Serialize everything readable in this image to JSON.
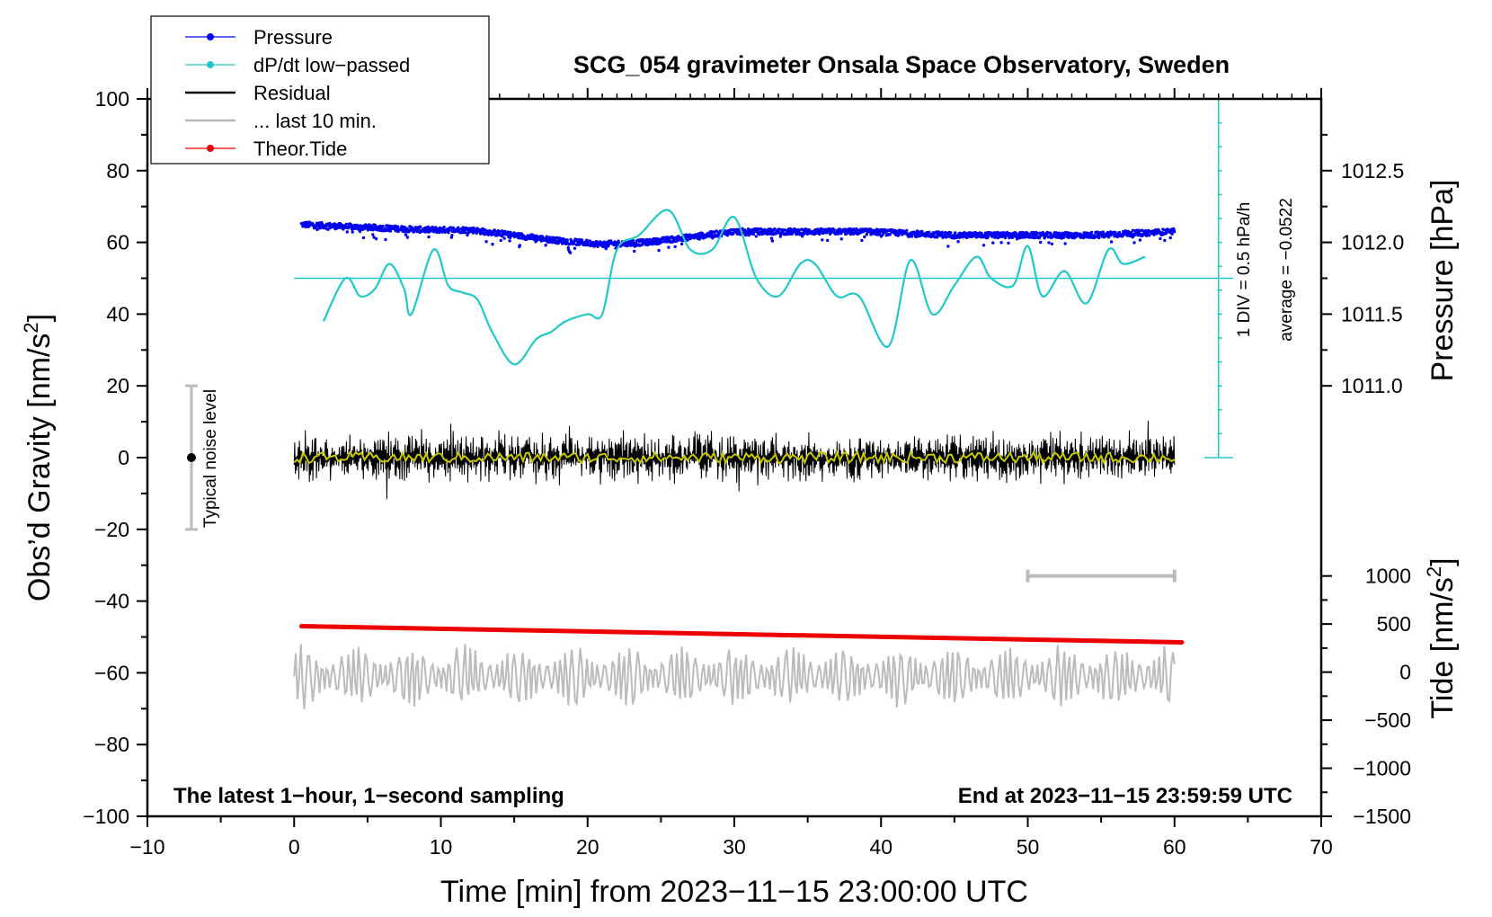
{
  "chart_data": {
    "type": "line",
    "title": "SCG_054 gravimeter Onsala Space Observatory, Sweden",
    "xlabel": "Time [min] from 2023−11−15 23:00:00 UTC",
    "ylabel_left": "Obs’d Gravity [nm/s",
    "ylabel_left_sup": "2",
    "ylabel_left_end": "]",
    "ylabel_pressure": "Pressure [hPa]",
    "ylabel_tide": "Tide [nm/s",
    "ylabel_tide_sup": "2",
    "ylabel_tide_end": "]",
    "xlim": [
      -10,
      70
    ],
    "ylim": [
      -100,
      100
    ],
    "x_ticks": [
      {
        "v": -10,
        "label": "−10"
      },
      {
        "v": 0,
        "label": "0"
      },
      {
        "v": 10,
        "label": "10"
      },
      {
        "v": 20,
        "label": "20"
      },
      {
        "v": 30,
        "label": "30"
      },
      {
        "v": 40,
        "label": "40"
      },
      {
        "v": 50,
        "label": "50"
      },
      {
        "v": 60,
        "label": "60"
      },
      {
        "v": 70,
        "label": "70"
      }
    ],
    "y_ticks": [
      {
        "v": 100,
        "label": "100"
      },
      {
        "v": 80,
        "label": "80"
      },
      {
        "v": 60,
        "label": "60"
      },
      {
        "v": 40,
        "label": "40"
      },
      {
        "v": 20,
        "label": "20"
      },
      {
        "v": 0,
        "label": "0"
      },
      {
        "v": -20,
        "label": "−20"
      },
      {
        "v": -40,
        "label": "−40"
      },
      {
        "v": -60,
        "label": "−60"
      },
      {
        "v": -80,
        "label": "−80"
      },
      {
        "v": -100,
        "label": "−100"
      }
    ],
    "pressure_axis": {
      "range_hpa": [
        1011.0,
        1012.5
      ],
      "maps_to_left": [
        20,
        80
      ],
      "ticks": [
        {
          "v": 1012.5,
          "label": "1012.5"
        },
        {
          "v": 1012.0,
          "label": "1012.0"
        },
        {
          "v": 1011.5,
          "label": "1011.5"
        },
        {
          "v": 1011.0,
          "label": "1011.0"
        }
      ]
    },
    "tide_axis": {
      "range": [
        -1500,
        1000
      ],
      "maps_to_left": [
        -100,
        -33
      ],
      "ticks": [
        {
          "v": 1000,
          "label": "1000"
        },
        {
          "v": 500,
          "label": "500"
        },
        {
          "v": 0,
          "label": "0"
        },
        {
          "v": -500,
          "label": "−500"
        },
        {
          "v": -1000,
          "label": "−1000"
        },
        {
          "v": -1500,
          "label": "−1500"
        }
      ]
    },
    "series": [
      {
        "name": "Pressure",
        "color": "#0000ee",
        "style": "dots",
        "x": [
          0.5,
          3,
          6,
          9,
          12,
          15,
          18,
          21,
          24,
          27,
          30,
          33,
          36,
          39,
          42,
          45,
          48,
          51,
          54,
          57,
          60
        ],
        "y": [
          65,
          64.5,
          64,
          63.5,
          63.5,
          62,
          60.5,
          59.5,
          60,
          61.5,
          63,
          63,
          63,
          63,
          62.5,
          62,
          62,
          62,
          62,
          62.5,
          63
        ]
      },
      {
        "name": "dP/dt low−passed",
        "color": "#20c8c8",
        "style": "line",
        "x": [
          2,
          3.5,
          4.5,
          5.5,
          6.5,
          7.5,
          8,
          9.5,
          10.5,
          11.5,
          12.5,
          13.5,
          15,
          16.5,
          17.5,
          18.5,
          20,
          21,
          22,
          23.5,
          25.5,
          27,
          28.5,
          30,
          31.5,
          33,
          34.5,
          35.5,
          37,
          38.5,
          40.5,
          42,
          43.5,
          45,
          46.5,
          47.5,
          49,
          50,
          51,
          52.5,
          54,
          55.5,
          56.5,
          58
        ],
        "y": [
          38,
          50,
          45,
          47,
          54,
          47,
          40,
          58,
          48,
          46,
          44,
          35,
          26,
          33,
          35,
          38,
          40,
          40,
          58,
          62,
          69,
          58,
          58,
          67,
          50,
          45,
          54,
          54,
          45,
          45,
          31,
          55,
          40,
          48,
          56,
          50,
          48,
          59,
          45,
          52,
          43,
          58,
          54,
          56
        ]
      },
      {
        "name": "Residual",
        "color": "#000000",
        "style": "noisy",
        "center": 0,
        "amplitude": 8,
        "x_range": [
          0,
          60
        ]
      },
      {
        "name": "... last 10 min.",
        "color": "#bbbbbb",
        "style": "bar",
        "x_range": [
          50,
          60
        ],
        "y": -33
      },
      {
        "name": "Theor.Tide",
        "color": "#ee0000",
        "style": "dots",
        "x": [
          0.5,
          60.5
        ],
        "y": [
          -47,
          -51.5
        ]
      }
    ],
    "low_passed_residual": {
      "color": "#c8c800",
      "x_range": [
        0,
        60
      ],
      "amplitude": 1.5
    },
    "tide_band": {
      "color": "#bbbbbb",
      "x_range": [
        0,
        60
      ],
      "center": -61,
      "amplitude": 8
    },
    "dpdt_reference": {
      "y": 50,
      "x_range": [
        0,
        64
      ]
    },
    "scale_bar": {
      "x": 63,
      "y_range": [
        0,
        100
      ],
      "divisions": 15
    },
    "noise_marker": {
      "x": -7,
      "y": 0,
      "range": [
        -20,
        20
      ],
      "label": "Typical noise level"
    },
    "annotations": {
      "left": "The latest 1−hour, 1−second sampling",
      "right": "End at 2023−11−15 23:59:59 UTC",
      "scale_div": "1 DIV = 0.5 hPa/h",
      "average": "average = −0.0522"
    },
    "legend": {
      "placement": "top-left",
      "entries": [
        {
          "label": "Pressure",
          "color": "#0000ee",
          "marker": "dot-line"
        },
        {
          "label": "dP/dt low−passed",
          "color": "#20c8c8",
          "marker": "dot-line"
        },
        {
          "label": "Residual",
          "color": "#000000",
          "marker": "line"
        },
        {
          "label": "... last 10 min.",
          "color": "#bbbbbb",
          "marker": "line"
        },
        {
          "label": "Theor.Tide",
          "color": "#ee0000",
          "marker": "dot-line"
        }
      ]
    }
  }
}
